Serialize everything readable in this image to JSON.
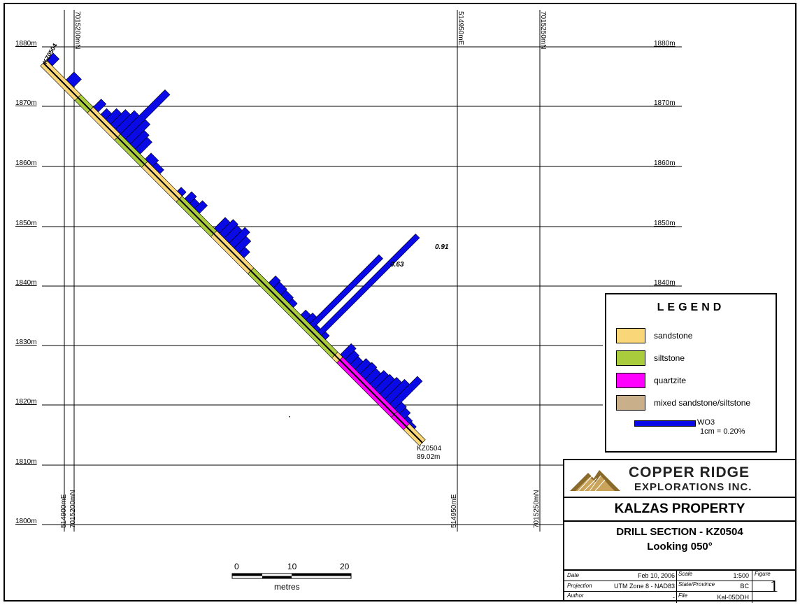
{
  "section": {
    "elevations": [
      "1880m",
      "1870m",
      "1860m",
      "1850m",
      "1840m",
      "1830m",
      "1820m",
      "1810m",
      "1800m"
    ],
    "elevations_right": [
      "1880m",
      "1870m",
      "1860m",
      "1850m",
      "1840m"
    ],
    "top_coords": [
      "7015200mN",
      "514950mE",
      "7015250mN"
    ],
    "bottom_coords": [
      "514900mE",
      "7015200mN",
      "514950mE",
      "7015250mN"
    ],
    "collar_label": "KZ0504",
    "eoh_label": "KZ0504",
    "eoh_depth": "89.02m",
    "high_values": [
      "0.63",
      "0.91"
    ]
  },
  "legend": {
    "title": "LEGEND",
    "items": [
      {
        "label": "sandstone",
        "color": "#f9d779"
      },
      {
        "label": "siltstone",
        "color": "#a8cc3c"
      },
      {
        "label": "quartzite",
        "color": "#ff00ff"
      },
      {
        "label": "mixed sandstone/siltstone",
        "color": "#c9b08a"
      }
    ],
    "wo3_label": "WO3",
    "wo3_scale": "1cm = 0.20%",
    "wo3_color": "#0a0ae6"
  },
  "scale": {
    "ticks": [
      "0",
      "10",
      "20"
    ],
    "unit": "metres"
  },
  "titleblock": {
    "company": "COPPER RIDGE",
    "company_sub": "EXPLORATIONS INC.",
    "property": "KALZAS PROPERTY",
    "section": "DRILL SECTION - KZ0504",
    "looking": "Looking 050°",
    "date_label": "Date",
    "date": "Feb 10, 2006",
    "scale_label": "Scale",
    "scale": "1:500",
    "figure_label": "Figure",
    "figure": "1",
    "projection_label": "Projection",
    "projection": "UTM Zone 8 - NAD83",
    "state_label": "State/Province",
    "state": "BC",
    "author_label": "Author",
    "author": "-",
    "file_label": "File",
    "file": "Kal-05DDH"
  }
}
